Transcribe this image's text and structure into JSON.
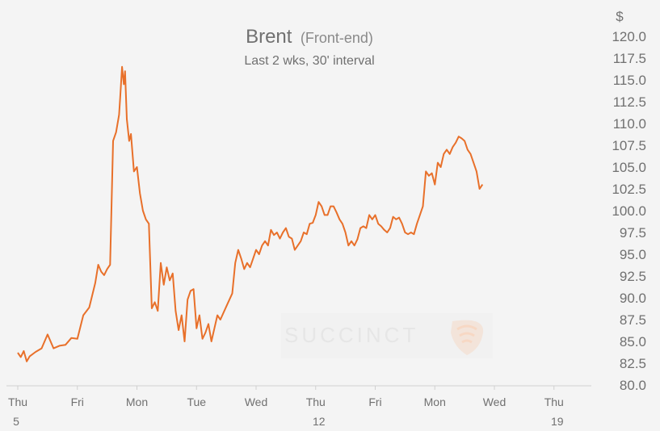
{
  "chart_data": {
    "type": "line",
    "title": "Brent",
    "title_suffix": "(Front-end)",
    "subtitle": "Last 2 wks, 30' interval",
    "ylabel": "$",
    "ylim": [
      80,
      120
    ],
    "y_ticks": [
      "120.0",
      "117.5",
      "115.0",
      "112.5",
      "110.0",
      "107.5",
      "105.0",
      "102.5",
      "100.0",
      "97.5",
      "95.0",
      "92.5",
      "90.0",
      "87.5",
      "85.0",
      "82.5",
      "80.0"
    ],
    "x_ticks": [
      {
        "day": "Thu",
        "date": "5"
      },
      {
        "day": "Fri",
        "date": ""
      },
      {
        "day": "Mon",
        "date": ""
      },
      {
        "day": "Tue",
        "date": ""
      },
      {
        "day": "Wed",
        "date": ""
      },
      {
        "day": "Thu",
        "date": "12"
      },
      {
        "day": "Fri",
        "date": ""
      },
      {
        "day": "Mon",
        "date": ""
      },
      {
        "day": "Wed",
        "date": ""
      },
      {
        "day": "Thu",
        "date": "19"
      }
    ],
    "grid": false,
    "line_color": "#e8702a",
    "watermark": "SUCCINCT",
    "series": [
      {
        "values": [
          [
            0.0,
            83.7
          ],
          [
            0.05,
            83.2
          ],
          [
            0.1,
            83.9
          ],
          [
            0.15,
            82.7
          ],
          [
            0.2,
            83.3
          ],
          [
            0.3,
            83.8
          ],
          [
            0.4,
            84.2
          ],
          [
            0.5,
            85.8
          ],
          [
            0.6,
            84.2
          ],
          [
            0.7,
            84.5
          ],
          [
            0.8,
            84.6
          ],
          [
            0.9,
            85.4
          ],
          [
            1.0,
            85.3
          ],
          [
            1.1,
            88.0
          ],
          [
            1.2,
            88.9
          ],
          [
            1.3,
            91.7
          ],
          [
            1.35,
            93.8
          ],
          [
            1.4,
            93.0
          ],
          [
            1.45,
            92.6
          ],
          [
            1.5,
            93.3
          ],
          [
            1.55,
            93.8
          ],
          [
            1.6,
            108.0
          ],
          [
            1.65,
            109.0
          ],
          [
            1.7,
            111.0
          ],
          [
            1.72,
            113.0
          ],
          [
            1.75,
            116.5
          ],
          [
            1.78,
            114.5
          ],
          [
            1.8,
            116.0
          ],
          [
            1.83,
            110.5
          ],
          [
            1.87,
            108.0
          ],
          [
            1.9,
            108.8
          ],
          [
            1.95,
            104.5
          ],
          [
            2.0,
            105.0
          ],
          [
            2.05,
            102.0
          ],
          [
            2.1,
            100.0
          ],
          [
            2.15,
            99.0
          ],
          [
            2.2,
            98.5
          ],
          [
            2.25,
            88.8
          ],
          [
            2.3,
            89.5
          ],
          [
            2.35,
            88.5
          ],
          [
            2.4,
            94.0
          ],
          [
            2.45,
            91.5
          ],
          [
            2.5,
            93.5
          ],
          [
            2.55,
            92.0
          ],
          [
            2.6,
            92.8
          ],
          [
            2.65,
            88.5
          ],
          [
            2.7,
            86.3
          ],
          [
            2.75,
            88.0
          ],
          [
            2.8,
            85.0
          ],
          [
            2.85,
            89.8
          ],
          [
            2.9,
            90.8
          ],
          [
            2.95,
            91.0
          ],
          [
            3.0,
            86.5
          ],
          [
            3.05,
            88.0
          ],
          [
            3.1,
            85.3
          ],
          [
            3.15,
            86.0
          ],
          [
            3.2,
            87.0
          ],
          [
            3.25,
            85.0
          ],
          [
            3.3,
            86.5
          ],
          [
            3.35,
            88.0
          ],
          [
            3.4,
            87.5
          ],
          [
            3.5,
            89.0
          ],
          [
            3.6,
            90.5
          ],
          [
            3.65,
            94.0
          ],
          [
            3.7,
            95.5
          ],
          [
            3.75,
            94.5
          ],
          [
            3.8,
            93.3
          ],
          [
            3.85,
            94.0
          ],
          [
            3.9,
            93.5
          ],
          [
            3.95,
            94.5
          ],
          [
            4.0,
            95.5
          ],
          [
            4.05,
            95.0
          ],
          [
            4.1,
            96.0
          ],
          [
            4.15,
            96.5
          ],
          [
            4.2,
            96.0
          ],
          [
            4.25,
            97.8
          ],
          [
            4.3,
            97.2
          ],
          [
            4.35,
            97.5
          ],
          [
            4.4,
            96.8
          ],
          [
            4.45,
            97.5
          ],
          [
            4.5,
            98.0
          ],
          [
            4.55,
            97.0
          ],
          [
            4.6,
            96.8
          ],
          [
            4.65,
            95.5
          ],
          [
            4.7,
            96.0
          ],
          [
            4.75,
            96.5
          ],
          [
            4.8,
            97.5
          ],
          [
            4.85,
            97.3
          ],
          [
            4.9,
            98.5
          ],
          [
            4.95,
            98.6
          ],
          [
            5.0,
            99.5
          ],
          [
            5.05,
            101.0
          ],
          [
            5.1,
            100.5
          ],
          [
            5.15,
            99.5
          ],
          [
            5.2,
            99.5
          ],
          [
            5.25,
            100.5
          ],
          [
            5.3,
            100.5
          ],
          [
            5.35,
            99.8
          ],
          [
            5.4,
            99.0
          ],
          [
            5.45,
            98.5
          ],
          [
            5.5,
            97.5
          ],
          [
            5.55,
            96.0
          ],
          [
            5.6,
            96.5
          ],
          [
            5.65,
            96.0
          ],
          [
            5.7,
            96.7
          ],
          [
            5.75,
            98.0
          ],
          [
            5.8,
            98.2
          ],
          [
            5.85,
            98.0
          ],
          [
            5.9,
            99.5
          ],
          [
            5.95,
            99.0
          ],
          [
            6.0,
            99.5
          ],
          [
            6.05,
            98.5
          ],
          [
            6.1,
            98.2
          ],
          [
            6.15,
            97.8
          ],
          [
            6.2,
            97.5
          ],
          [
            6.25,
            98.0
          ],
          [
            6.3,
            99.3
          ],
          [
            6.35,
            99.0
          ],
          [
            6.4,
            99.2
          ],
          [
            6.45,
            98.5
          ],
          [
            6.5,
            97.5
          ],
          [
            6.55,
            97.3
          ],
          [
            6.6,
            97.5
          ],
          [
            6.65,
            97.3
          ],
          [
            6.7,
            98.5
          ],
          [
            6.75,
            99.5
          ],
          [
            6.8,
            100.5
          ],
          [
            6.85,
            104.5
          ],
          [
            6.9,
            104.0
          ],
          [
            6.95,
            104.3
          ],
          [
            7.0,
            103.0
          ],
          [
            7.05,
            105.5
          ],
          [
            7.1,
            105.0
          ],
          [
            7.15,
            106.5
          ],
          [
            7.2,
            107.0
          ],
          [
            7.25,
            106.5
          ],
          [
            7.3,
            107.3
          ],
          [
            7.35,
            107.8
          ],
          [
            7.4,
            108.5
          ],
          [
            7.45,
            108.3
          ],
          [
            7.5,
            108.0
          ],
          [
            7.55,
            107.0
          ],
          [
            7.6,
            106.5
          ],
          [
            7.65,
            105.5
          ],
          [
            7.7,
            104.5
          ],
          [
            7.75,
            102.5
          ],
          [
            7.8,
            103.0
          ]
        ]
      }
    ]
  }
}
